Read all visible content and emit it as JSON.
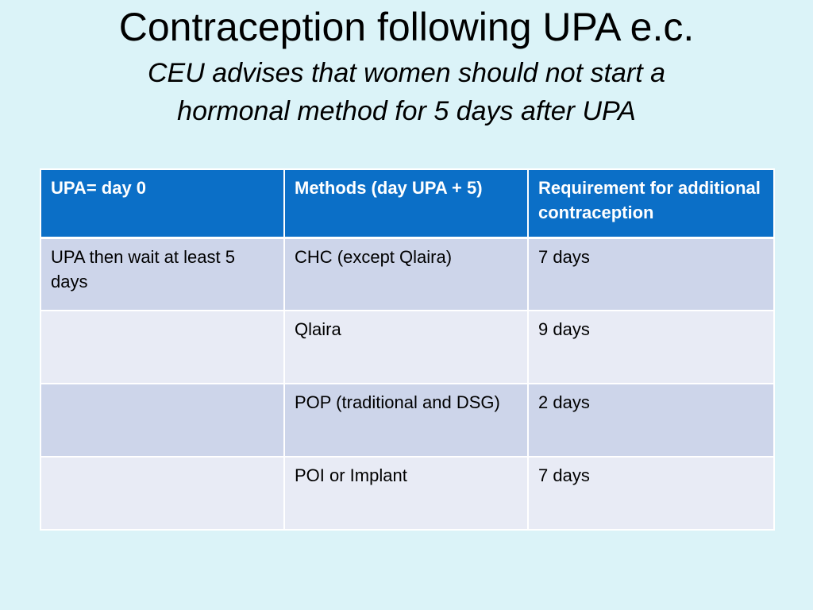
{
  "slide": {
    "title": "Contraception following UPA e.c.",
    "subtitle_lines": [
      "CEU advises that women should not start a",
      "hormonal method for 5 days after UPA"
    ]
  },
  "table": {
    "headers": [
      "UPA= day 0",
      "Methods (day UPA + 5)",
      "Requirement for additional contraception"
    ],
    "rows": [
      [
        "UPA then wait at least 5 days",
        "CHC (except Qlaira)",
        "7 days"
      ],
      [
        "",
        "Qlaira",
        "9 days"
      ],
      [
        "",
        "POP (traditional and DSG)",
        "2 days"
      ],
      [
        "",
        "POI or Implant",
        "7 days"
      ]
    ],
    "colors": {
      "header_bg": "#0b6fc7",
      "row_odd_bg": "#cdd5ea",
      "row_even_bg": "#e8ebf5",
      "page_bg": "#dbf3f8"
    }
  }
}
